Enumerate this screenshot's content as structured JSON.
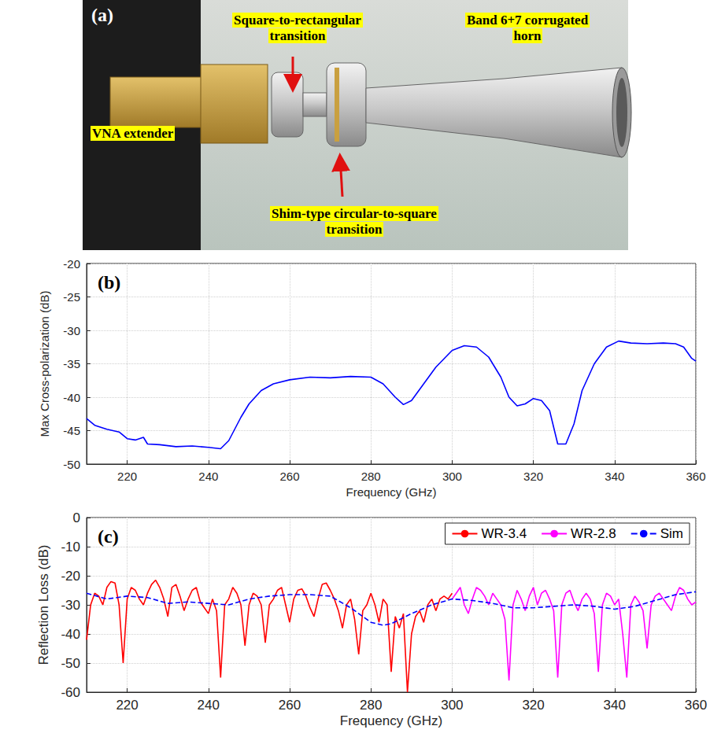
{
  "photo": {
    "panel": "(a)",
    "labels": [
      "Square-to-rectangular transition",
      "Band 6+7 corrugated horn",
      "VNA extender",
      "Shim-type circular-to-square transition"
    ]
  },
  "chart_data": [
    {
      "type": "line",
      "annotations": [
        "(b)"
      ],
      "xlabel": "Frequency (GHz)",
      "ylabel": "Max Cross-polarization (dB)",
      "x": [
        210,
        212,
        215,
        218,
        220,
        222,
        224,
        225,
        228,
        232,
        236,
        240,
        243,
        245,
        248,
        250,
        253,
        256,
        260,
        265,
        270,
        275,
        280,
        283,
        286,
        288,
        290,
        293,
        296,
        300,
        303,
        306,
        309,
        312,
        314,
        316,
        318,
        320,
        322,
        324,
        326,
        328,
        330,
        332,
        335,
        338,
        341,
        344,
        348,
        352,
        355,
        357,
        359,
        360
      ],
      "values": [
        -43.2,
        -44.2,
        -44.8,
        -45.2,
        -46.2,
        -46.4,
        -46.0,
        -47.0,
        -47.1,
        -47.4,
        -47.3,
        -47.5,
        -47.7,
        -46.5,
        -43,
        -41,
        -39,
        -38,
        -37.4,
        -37.0,
        -37.1,
        -36.9,
        -37.0,
        -38,
        -40,
        -41.1,
        -40.5,
        -38,
        -35.5,
        -33,
        -32.3,
        -32.5,
        -34,
        -37,
        -40,
        -41.3,
        -41,
        -40.2,
        -40.5,
        -42,
        -47,
        -47,
        -44,
        -39,
        -35,
        -32.5,
        -31.6,
        -31.9,
        -32.0,
        -31.9,
        -32.0,
        -32.5,
        -34.2,
        -34.6
      ],
      "color": "#0000ff",
      "xlim": [
        210,
        360
      ],
      "xticks": [
        220,
        240,
        260,
        280,
        300,
        320,
        340,
        360
      ],
      "ylim": [
        -50,
        -20
      ],
      "yticks": [
        -50,
        -45,
        -40,
        -35,
        -30,
        -25,
        -20
      ],
      "grid": true
    },
    {
      "type": "line",
      "annotations": [
        "(c)"
      ],
      "xlabel": "Frequency (GHz)",
      "ylabel": "Reflection Loss (dB)",
      "series": [
        {
          "name": "WR-3.4",
          "color": "#ff0000",
          "line_style": "solid",
          "x": [
            210,
            211,
            212,
            213,
            214,
            215,
            216,
            217,
            218,
            219,
            220,
            221,
            222,
            223,
            224,
            225,
            226,
            227,
            228,
            229,
            230,
            231,
            232,
            233,
            234,
            235,
            236,
            237,
            238,
            239,
            240,
            241,
            242,
            243,
            244,
            245,
            246,
            247,
            248,
            249,
            250,
            251,
            252,
            253,
            254,
            255,
            256,
            257,
            258,
            259,
            260,
            261,
            262,
            263,
            264,
            265,
            266,
            267,
            268,
            269,
            270,
            271,
            272,
            273,
            274,
            275,
            276,
            277,
            278,
            279,
            280,
            281,
            282,
            283,
            284,
            285,
            286,
            287,
            288,
            289,
            290,
            291,
            292,
            293,
            294,
            295,
            296,
            297,
            298,
            299,
            300
          ],
          "values": [
            -42,
            -30,
            -26,
            -27,
            -30,
            -24,
            -22,
            -22.5,
            -30,
            -50,
            -28,
            -24,
            -25,
            -28,
            -30,
            -26,
            -23,
            -21.5,
            -24,
            -28,
            -34,
            -24,
            -23,
            -27,
            -32,
            -28,
            -25,
            -24,
            -29,
            -31,
            -33,
            -28,
            -32,
            -55,
            -30,
            -28,
            -24,
            -26,
            -30,
            -44,
            -30,
            -26,
            -27,
            -30,
            -43,
            -30,
            -28,
            -25,
            -24,
            -30,
            -36,
            -28,
            -25,
            -24.5,
            -27,
            -31,
            -34,
            -28,
            -23,
            -22.5,
            -25,
            -28,
            -32,
            -38,
            -30,
            -28,
            -35,
            -47,
            -32,
            -30,
            -26,
            -30,
            -36,
            -28,
            -30,
            -53,
            -34,
            -38,
            -33,
            -60,
            -40,
            -34,
            -32,
            -36,
            -30,
            -28,
            -32,
            -28,
            -27,
            -28,
            -26
          ]
        },
        {
          "name": "WR-2.8",
          "color": "#ff00ff",
          "line_style": "solid",
          "x": [
            300,
            301,
            302,
            303,
            304,
            305,
            306,
            307,
            308,
            309,
            310,
            311,
            312,
            313,
            314,
            315,
            316,
            317,
            318,
            319,
            320,
            321,
            322,
            323,
            324,
            325,
            326,
            327,
            328,
            329,
            330,
            331,
            332,
            333,
            334,
            335,
            336,
            337,
            338,
            339,
            340,
            341,
            342,
            343,
            344,
            345,
            346,
            347,
            348,
            349,
            350,
            351,
            352,
            353,
            354,
            355,
            356,
            357,
            358,
            359,
            360
          ],
          "values": [
            -28,
            -26,
            -24,
            -30,
            -33,
            -28,
            -24,
            -25,
            -27,
            -30,
            -26,
            -28,
            -30,
            -35,
            -56,
            -30,
            -25,
            -28,
            -32,
            -27,
            -24,
            -30,
            -26,
            -25,
            -28,
            -32,
            -55,
            -30,
            -26,
            -25,
            -29,
            -32,
            -28,
            -26,
            -28,
            -33,
            -53,
            -30,
            -26,
            -27,
            -30,
            -28,
            -40,
            -55,
            -30,
            -27,
            -29,
            -32,
            -45,
            -30,
            -27,
            -26,
            -28,
            -30,
            -32,
            -27,
            -24,
            -25,
            -28,
            -30,
            -29
          ]
        },
        {
          "name": "Sim",
          "color": "#0000ff",
          "line_style": "dashed",
          "x": [
            210,
            215,
            220,
            225,
            230,
            235,
            240,
            245,
            250,
            255,
            260,
            265,
            270,
            275,
            280,
            283,
            285,
            290,
            295,
            300,
            305,
            310,
            315,
            320,
            325,
            330,
            335,
            340,
            345,
            350,
            355,
            360
          ],
          "values": [
            -26,
            -28,
            -27,
            -27.5,
            -29.5,
            -29,
            -29.5,
            -30,
            -28,
            -27,
            -26.5,
            -26.5,
            -27,
            -31,
            -36,
            -37,
            -36.5,
            -33,
            -30,
            -28,
            -28.5,
            -29.5,
            -31,
            -31,
            -30.5,
            -30,
            -30.5,
            -31.5,
            -30.5,
            -28.5,
            -26.5,
            -25.5
          ]
        }
      ],
      "xlim": [
        210,
        360
      ],
      "xticks": [
        220,
        240,
        260,
        280,
        300,
        320,
        340,
        360
      ],
      "ylim": [
        -60,
        0
      ],
      "yticks": [
        -60,
        -50,
        -40,
        -30,
        -20,
        -10,
        0
      ],
      "grid": true,
      "legend": "upper right"
    }
  ]
}
